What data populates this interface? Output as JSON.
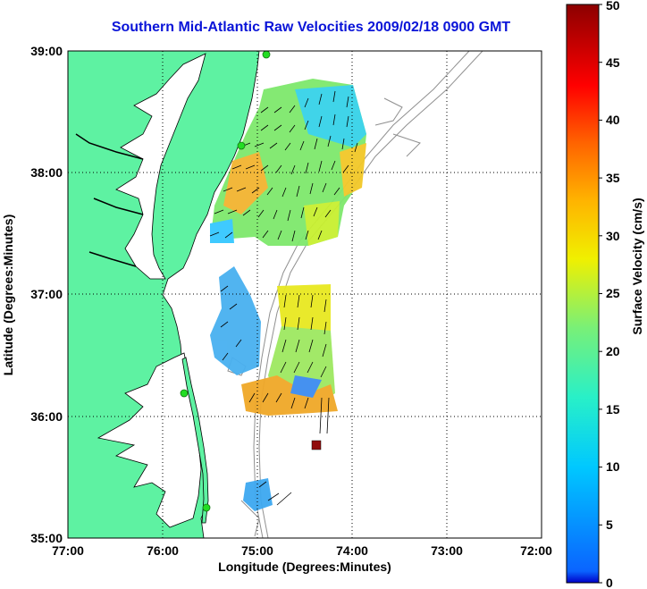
{
  "title": "Southern Mid-Atlantic Raw Velocities 2009/02/18 0900 GMT",
  "map": {
    "x_label": "Longitude (Degrees:Minutes)",
    "y_label": "Latitude (Degrees:Minutes)",
    "x_ticks": [
      "77:00",
      "76:00",
      "75:00",
      "74:00",
      "73:00",
      "72:00"
    ],
    "y_ticks": [
      "39:00",
      "38:00",
      "37:00",
      "36:00",
      "35:00"
    ],
    "lon_range": [
      -77,
      -72
    ],
    "lat_range": [
      35,
      39
    ],
    "grid": true,
    "colors": {
      "land": "#5ef2a2",
      "coast_line": "#000000",
      "bathymetry": "#909090",
      "station": "#22dd22"
    }
  },
  "colorbar": {
    "label": "Surface Velocity (cm/s)",
    "ticks": [
      "0",
      "5",
      "10",
      "15",
      "20",
      "25",
      "30",
      "35",
      "40",
      "45",
      "50"
    ],
    "range": [
      0,
      50
    ],
    "colormap": "jet"
  }
}
